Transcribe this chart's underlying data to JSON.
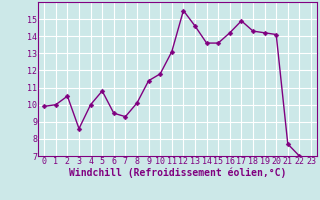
{
  "x": [
    0,
    1,
    2,
    3,
    4,
    5,
    6,
    7,
    8,
    9,
    10,
    11,
    12,
    13,
    14,
    15,
    16,
    17,
    18,
    19,
    20,
    21,
    22,
    23
  ],
  "y": [
    9.9,
    10.0,
    10.5,
    8.6,
    10.0,
    10.8,
    9.5,
    9.3,
    10.1,
    11.4,
    11.8,
    13.1,
    15.5,
    14.6,
    13.6,
    13.6,
    14.2,
    14.9,
    14.3,
    14.2,
    14.1,
    7.7,
    7.0,
    6.8
  ],
  "line_color": "#800080",
  "marker_color": "#800080",
  "bg_color": "#cce8e8",
  "grid_color": "#ffffff",
  "xlabel": "Windchill (Refroidissement éolien,°C)",
  "xlabel_color": "#800080",
  "tick_color": "#800080",
  "ylim": [
    7,
    16
  ],
  "xlim": [
    -0.5,
    23.5
  ],
  "yticks": [
    7,
    8,
    9,
    10,
    11,
    12,
    13,
    14,
    15
  ],
  "xticks": [
    0,
    1,
    2,
    3,
    4,
    5,
    6,
    7,
    8,
    9,
    10,
    11,
    12,
    13,
    14,
    15,
    16,
    17,
    18,
    19,
    20,
    21,
    22,
    23
  ],
  "tick_fontsize": 6,
  "xlabel_fontsize": 7,
  "marker_size": 2.5,
  "line_width": 1.0
}
